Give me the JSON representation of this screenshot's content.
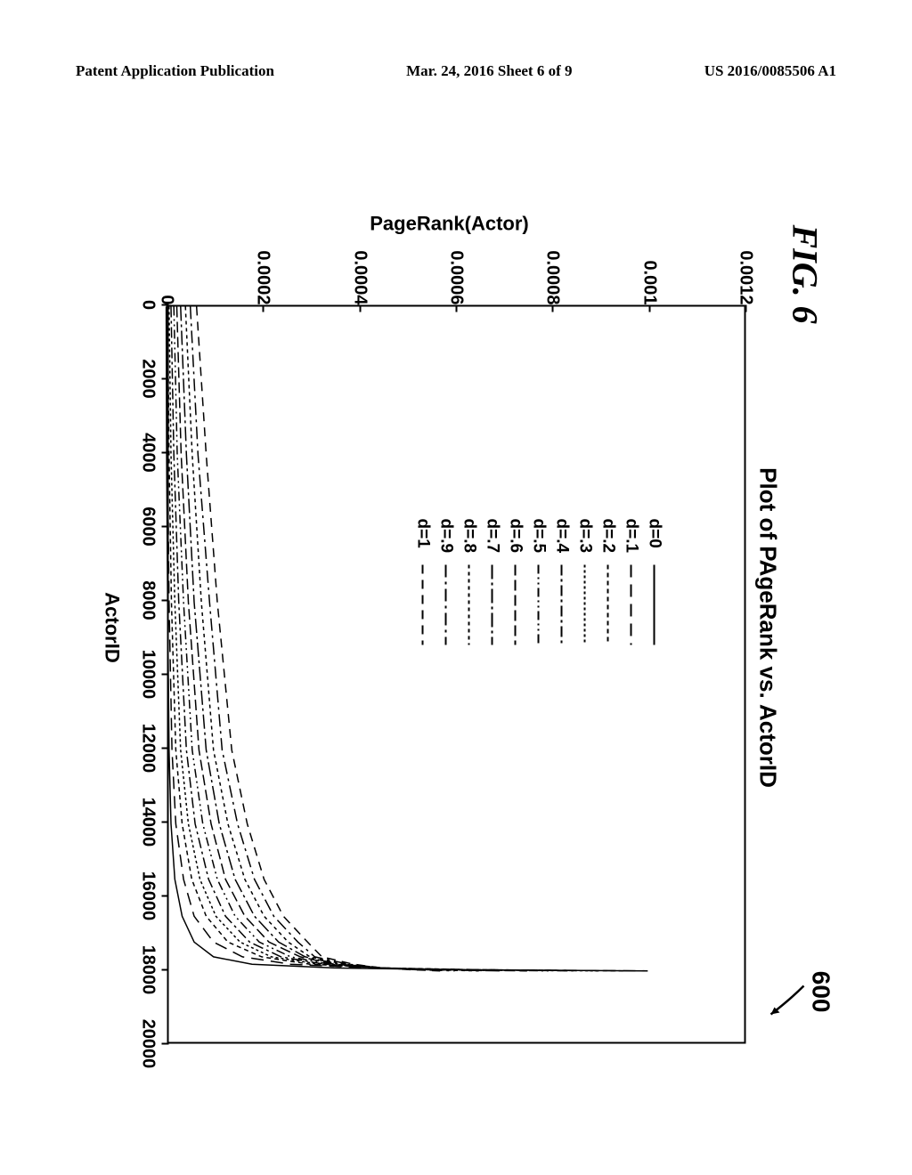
{
  "header": {
    "left": "Patent Application Publication",
    "center": "Mar. 24, 2016  Sheet 6 of 9",
    "right": "US 2016/0085506 A1"
  },
  "figure": {
    "label": "FIG. 6",
    "ref_num": "600",
    "plot_title": "Plot of PAgeRank vs. ActorID",
    "ylabel": "PageRank(Actor)",
    "xlabel": "ActorID",
    "type": "line",
    "xlim": [
      0,
      20000
    ],
    "ylim": [
      0,
      0.0012
    ],
    "xtick_step": 2000,
    "ytick_step": 0.0002,
    "xtick_labels": [
      "0",
      "2000",
      "4000",
      "6000",
      "8000",
      "10000",
      "12000",
      "14000",
      "16000",
      "18000",
      "20000"
    ],
    "ytick_labels": [
      "0",
      "0.0002",
      "0.0004",
      "0.0006",
      "0.0008",
      "0.001",
      "0.0012"
    ],
    "background_color": "#ffffff",
    "axis_color": "#000000",
    "line_color": "#000000",
    "title_fontsize": 26,
    "label_fontsize": 22,
    "tick_fontsize": 20,
    "legend_fontsize": 19,
    "line_width": 1.5,
    "legend": [
      {
        "label": "d=0",
        "dash": "none"
      },
      {
        "label": "d=.1",
        "dash": "14,8"
      },
      {
        "label": "d=.2",
        "dash": "5,4"
      },
      {
        "label": "d=.3",
        "dash": "3,3"
      },
      {
        "label": "d=.4",
        "dash": "12,4,3,4"
      },
      {
        "label": "d=.5",
        "dash": "10,4,2,4,2,4"
      },
      {
        "label": "d=.6",
        "dash": "12,5"
      },
      {
        "label": "d=.7",
        "dash": "16,4,3,4"
      },
      {
        "label": "d=.8",
        "dash": "4,4"
      },
      {
        "label": "d=.9",
        "dash": "14,5,3,5"
      },
      {
        "label": "d=1",
        "dash": "10,7"
      }
    ],
    "series": [
      {
        "d": 0,
        "dash": "none",
        "points": [
          [
            0,
            2e-06
          ],
          [
            4000,
            3e-06
          ],
          [
            8000,
            5e-06
          ],
          [
            12000,
            8e-06
          ],
          [
            14000,
            1.2e-05
          ],
          [
            15500,
            2e-05
          ],
          [
            16500,
            3.5e-05
          ],
          [
            17200,
            6e-05
          ],
          [
            17600,
            0.0001
          ],
          [
            17800,
            0.00018
          ],
          [
            17900,
            0.00035
          ],
          [
            17950,
            0.0006
          ],
          [
            17980,
            0.001
          ]
        ]
      },
      {
        "d": 0.1,
        "dash": "14,8",
        "points": [
          [
            0,
            3e-06
          ],
          [
            4000,
            5e-06
          ],
          [
            8000,
            8e-06
          ],
          [
            12000,
            1.4e-05
          ],
          [
            14000,
            2.2e-05
          ],
          [
            15500,
            3.8e-05
          ],
          [
            16500,
            6e-05
          ],
          [
            17200,
            0.0001
          ],
          [
            17600,
            0.00016
          ],
          [
            17800,
            0.00026
          ],
          [
            17900,
            0.00042
          ],
          [
            17950,
            0.00065
          ],
          [
            17980,
            0.001
          ]
        ]
      },
      {
        "d": 0.2,
        "dash": "5,4",
        "points": [
          [
            0,
            5e-06
          ],
          [
            4000,
            8e-06
          ],
          [
            8000,
            1.3e-05
          ],
          [
            12000,
            2.2e-05
          ],
          [
            14000,
            3.5e-05
          ],
          [
            15500,
            5.5e-05
          ],
          [
            16500,
            8.5e-05
          ],
          [
            17200,
            0.00013
          ],
          [
            17600,
            0.0002
          ],
          [
            17800,
            0.0003
          ],
          [
            17900,
            0.00045
          ],
          [
            17950,
            0.00065
          ],
          [
            17980,
            0.00095
          ]
        ]
      },
      {
        "d": 0.3,
        "dash": "3,3",
        "points": [
          [
            0,
            8e-06
          ],
          [
            4000,
            1.2e-05
          ],
          [
            8000,
            2e-05
          ],
          [
            12000,
            3.2e-05
          ],
          [
            14000,
            4.8e-05
          ],
          [
            15500,
            7.2e-05
          ],
          [
            16500,
            0.000105
          ],
          [
            17200,
            0.000155
          ],
          [
            17600,
            0.00022
          ],
          [
            17800,
            0.00032
          ],
          [
            17900,
            0.00045
          ],
          [
            17950,
            0.00062
          ],
          [
            17980,
            0.0009
          ]
        ]
      },
      {
        "d": 0.4,
        "dash": "12,4,3,4",
        "points": [
          [
            0,
            1.2e-05
          ],
          [
            4000,
            1.8e-05
          ],
          [
            8000,
            2.8e-05
          ],
          [
            12000,
            4.4e-05
          ],
          [
            14000,
            6.2e-05
          ],
          [
            15500,
            9e-05
          ],
          [
            16500,
            0.000125
          ],
          [
            17200,
            0.000175
          ],
          [
            17600,
            0.00024
          ],
          [
            17800,
            0.00033
          ],
          [
            17900,
            0.00045
          ],
          [
            17950,
            0.0006
          ],
          [
            17980,
            0.00085
          ]
        ]
      },
      {
        "d": 0.5,
        "dash": "10,4,2,4,2,4",
        "points": [
          [
            0,
            1.8e-05
          ],
          [
            4000,
            2.5e-05
          ],
          [
            8000,
            3.8e-05
          ],
          [
            12000,
            5.6e-05
          ],
          [
            14000,
            7.8e-05
          ],
          [
            15500,
            0.000108
          ],
          [
            16500,
            0.000145
          ],
          [
            17200,
            0.000195
          ],
          [
            17600,
            0.00026
          ],
          [
            17800,
            0.00034
          ],
          [
            17900,
            0.00045
          ],
          [
            17950,
            0.00058
          ],
          [
            17980,
            0.0008
          ]
        ]
      },
      {
        "d": 0.6,
        "dash": "12,5",
        "points": [
          [
            0,
            2.4e-05
          ],
          [
            4000,
            3.3e-05
          ],
          [
            8000,
            4.8e-05
          ],
          [
            12000,
            7e-05
          ],
          [
            14000,
            9.5e-05
          ],
          [
            15500,
            0.000125
          ],
          [
            16500,
            0.000165
          ],
          [
            17200,
            0.000215
          ],
          [
            17600,
            0.00028
          ],
          [
            17800,
            0.00035
          ],
          [
            17900,
            0.00045
          ],
          [
            17950,
            0.00056
          ],
          [
            17980,
            0.00075
          ]
        ]
      },
      {
        "d": 0.7,
        "dash": "16,4,3,4",
        "points": [
          [
            0,
            3.2e-05
          ],
          [
            4000,
            4.4e-05
          ],
          [
            8000,
            6e-05
          ],
          [
            12000,
            8.5e-05
          ],
          [
            14000,
            0.000112
          ],
          [
            15500,
            0.000145
          ],
          [
            16500,
            0.000185
          ],
          [
            17200,
            0.000235
          ],
          [
            17600,
            0.00029
          ],
          [
            17800,
            0.00036
          ],
          [
            17900,
            0.00045
          ],
          [
            17950,
            0.00055
          ],
          [
            17980,
            0.0007
          ]
        ]
      },
      {
        "d": 0.8,
        "dash": "4,4",
        "points": [
          [
            0,
            4.2e-05
          ],
          [
            4000,
            5.6e-05
          ],
          [
            8000,
            7.5e-05
          ],
          [
            12000,
            0.0001
          ],
          [
            14000,
            0.00013
          ],
          [
            15500,
            0.000165
          ],
          [
            16500,
            0.000205
          ],
          [
            17200,
            0.000255
          ],
          [
            17600,
            0.0003
          ],
          [
            17800,
            0.00037
          ],
          [
            17900,
            0.00045
          ],
          [
            17950,
            0.00054
          ],
          [
            17980,
            0.00065
          ]
        ]
      },
      {
        "d": 0.9,
        "dash": "14,5,3,5",
        "points": [
          [
            0,
            5.2e-05
          ],
          [
            4000,
            6.8e-05
          ],
          [
            8000,
            9.2e-05
          ],
          [
            12000,
            0.000118
          ],
          [
            14000,
            0.00015
          ],
          [
            15500,
            0.000185
          ],
          [
            16500,
            0.000225
          ],
          [
            17200,
            0.000275
          ],
          [
            17600,
            0.00031
          ],
          [
            17800,
            0.00038
          ],
          [
            17900,
            0.00045
          ],
          [
            17950,
            0.00052
          ],
          [
            17980,
            0.0006
          ]
        ]
      },
      {
        "d": 1,
        "dash": "10,7",
        "points": [
          [
            0,
            6.5e-05
          ],
          [
            4000,
            8.5e-05
          ],
          [
            8000,
            0.000108
          ],
          [
            12000,
            0.000138
          ],
          [
            14000,
            0.00017
          ],
          [
            15500,
            0.000205
          ],
          [
            16500,
            0.000245
          ],
          [
            17200,
            0.000295
          ],
          [
            17600,
            0.000325
          ],
          [
            17800,
            0.00039
          ],
          [
            17900,
            0.00045
          ],
          [
            17950,
            0.00051
          ],
          [
            17980,
            0.00057
          ]
        ]
      }
    ]
  }
}
